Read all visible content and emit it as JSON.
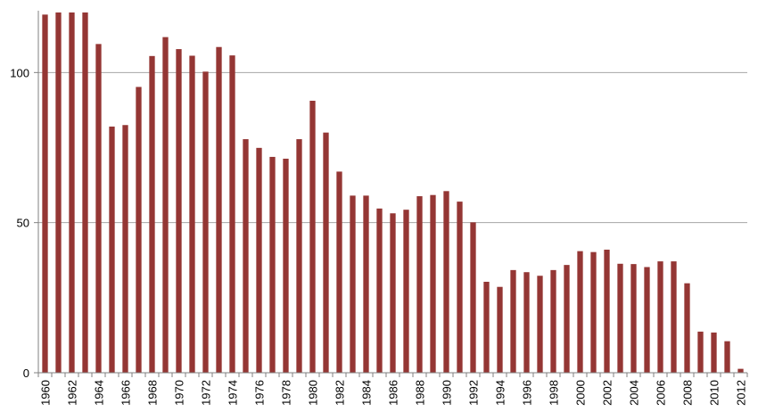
{
  "chart_data": {
    "type": "bar",
    "title": "",
    "xlabel": "",
    "ylabel": "",
    "ylim": [
      0,
      120
    ],
    "yticks": [
      0,
      50,
      100
    ],
    "grid": true,
    "legend": "none",
    "colors": {
      "bar": "#943634",
      "grid": "#a6a6a6",
      "axis": "#808080",
      "text": "#000000"
    },
    "categories": [
      "1960",
      "1961",
      "1962",
      "1963",
      "1964",
      "1965",
      "1966",
      "1967",
      "1968",
      "1969",
      "1970",
      "1971",
      "1972",
      "1973",
      "1974",
      "1975",
      "1976",
      "1977",
      "1978",
      "1979",
      "1980",
      "1981",
      "1982",
      "1983",
      "1984",
      "1985",
      "1986",
      "1987",
      "1988",
      "1989",
      "1990",
      "1991",
      "1992",
      "1993",
      "1994",
      "1995",
      "1996",
      "1997",
      "1998",
      "1999",
      "2000",
      "2001",
      "2002",
      "2003",
      "2004",
      "2005",
      "2006",
      "2007",
      "2008",
      "2009",
      "2010",
      "2011",
      "2012"
    ],
    "xtick_labels": [
      "1960",
      "1962",
      "1964",
      "1966",
      "1968",
      "1970",
      "1972",
      "1974",
      "1976",
      "1978",
      "1980",
      "1982",
      "1984",
      "1986",
      "1988",
      "1990",
      "1992",
      "1994",
      "1996",
      "1998",
      "2000",
      "2002",
      "2004",
      "2006",
      "2008",
      "2010",
      "2012"
    ],
    "values": [
      119.3,
      120,
      120,
      120,
      109.5,
      82,
      82.5,
      95.2,
      105.5,
      111.8,
      107.8,
      105.6,
      100.3,
      108.5,
      105.7,
      77.8,
      74.9,
      71.9,
      71.3,
      77.8,
      90.6,
      80,
      67,
      59,
      59,
      54.7,
      53.1,
      54.3,
      58.8,
      59.2,
      60.5,
      57,
      50.1,
      30.3,
      28.6,
      34.2,
      33.5,
      32.3,
      34.2,
      35.9,
      40.5,
      40.2,
      41,
      36.3,
      36.2,
      35.2,
      37.1,
      37.1,
      29.8,
      13.7,
      13.4,
      10.5,
      1.3
    ]
  }
}
